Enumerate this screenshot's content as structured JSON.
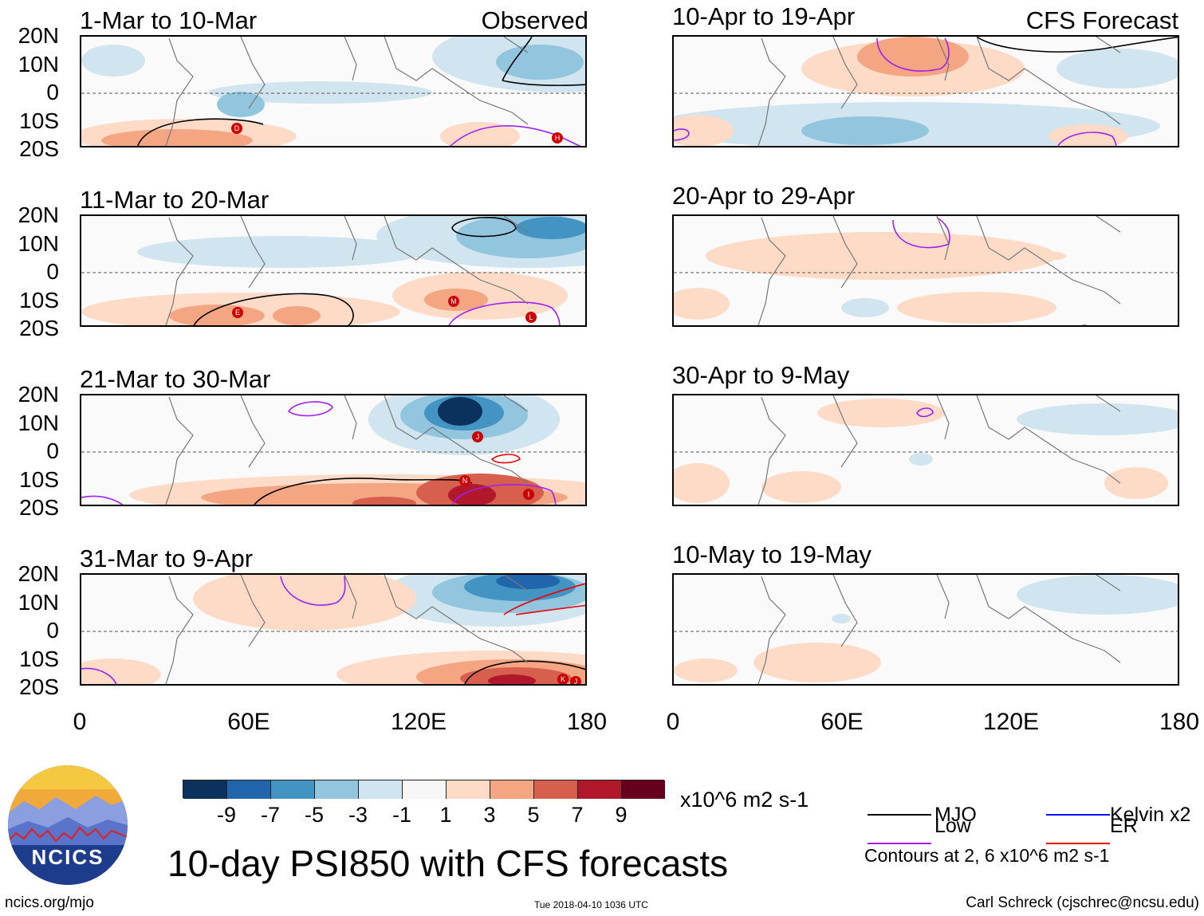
{
  "panels_left": [
    {
      "title": "1-Mar to 10-Mar",
      "tag": "Observed"
    },
    {
      "title": "11-Mar to 20-Mar",
      "tag": ""
    },
    {
      "title": "21-Mar to 30-Mar",
      "tag": ""
    },
    {
      "title": "31-Mar to 9-Apr",
      "tag": ""
    }
  ],
  "panels_right": [
    {
      "title": "10-Apr to 19-Apr",
      "tag": "CFS Forecast"
    },
    {
      "title": "20-Apr to 29-Apr",
      "tag": ""
    },
    {
      "title": "30-Apr to 9-May",
      "tag": ""
    },
    {
      "title": "10-May to 19-May",
      "tag": ""
    }
  ],
  "lat_labels": [
    "20N",
    "10N",
    "0",
    "10S",
    "20S"
  ],
  "lon_labels": [
    "0",
    "60E",
    "120E",
    "180"
  ],
  "colorbar": {
    "colors": [
      "#0b325c",
      "#2166ac",
      "#4393c3",
      "#92c5de",
      "#d1e5f0",
      "#f7f7f7",
      "#fddbc7",
      "#f4a582",
      "#d6604d",
      "#b2182b",
      "#67001f"
    ],
    "labels": [
      "-9",
      "-7",
      "-5",
      "-3",
      "-1",
      "1",
      "3",
      "5",
      "7",
      "9"
    ],
    "units": "x10^6 m2 s-1"
  },
  "legend": {
    "items": [
      {
        "label": "MJO",
        "color": "#000000"
      },
      {
        "label": "Low",
        "color": "#a020f0"
      },
      {
        "label": "Kelvin x2",
        "color": "#0000ff"
      },
      {
        "label": "ER",
        "color": "#ee0000"
      }
    ],
    "contours_note": "Contours at 2, 6 x10^6 m2 s-1"
  },
  "main_title": "10-day PSI850 with CFS forecasts",
  "logo_text": "NCICS",
  "footer": {
    "site": "ncics.org/mjo",
    "timestamp": "Tue 2018-04-10 1036 UTC",
    "credit": "Carl Schreck (cjschrec@ncsu.edu)"
  },
  "storm_markers_observed": [
    [
      "D",
      "H"
    ],
    [
      "E",
      "M",
      "L"
    ],
    [
      "J",
      "N",
      "I"
    ],
    [
      "K",
      "J"
    ]
  ]
}
